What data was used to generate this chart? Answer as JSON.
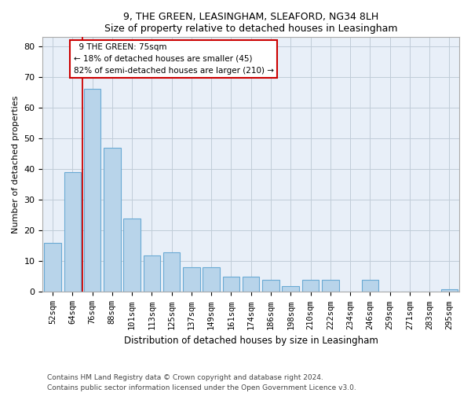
{
  "title1": "9, THE GREEN, LEASINGHAM, SLEAFORD, NG34 8LH",
  "title2": "Size of property relative to detached houses in Leasingham",
  "xlabel": "Distribution of detached houses by size in Leasingham",
  "ylabel": "Number of detached properties",
  "bar_color": "#b8d4ea",
  "bar_edge_color": "#6aaad4",
  "highlight_line_color": "#cc0000",
  "annotation_border_color": "#cc0000",
  "categories": [
    "52sqm",
    "64sqm",
    "76sqm",
    "88sqm",
    "101sqm",
    "113sqm",
    "125sqm",
    "137sqm",
    "149sqm",
    "161sqm",
    "174sqm",
    "186sqm",
    "198sqm",
    "210sqm",
    "222sqm",
    "234sqm",
    "246sqm",
    "259sqm",
    "271sqm",
    "283sqm",
    "295sqm"
  ],
  "values": [
    16,
    39,
    66,
    47,
    24,
    12,
    13,
    8,
    8,
    5,
    5,
    4,
    2,
    4,
    4,
    0,
    4,
    0,
    0,
    0,
    1
  ],
  "ylim_max": 83,
  "yticks": [
    0,
    10,
    20,
    30,
    40,
    50,
    60,
    70,
    80
  ],
  "highlight_bar_index": 2,
  "property_size_sqm": 75,
  "pct_smaller": 18,
  "n_smaller": 45,
  "pct_larger": 82,
  "n_larger": 210,
  "footnote_line1": "Contains HM Land Registry data © Crown copyright and database right 2024.",
  "footnote_line2": "Contains public sector information licensed under the Open Government Licence v3.0.",
  "bg_color": "#ffffff",
  "plot_bg_color": "#e8eff8",
  "grid_color": "#c0ccd8"
}
